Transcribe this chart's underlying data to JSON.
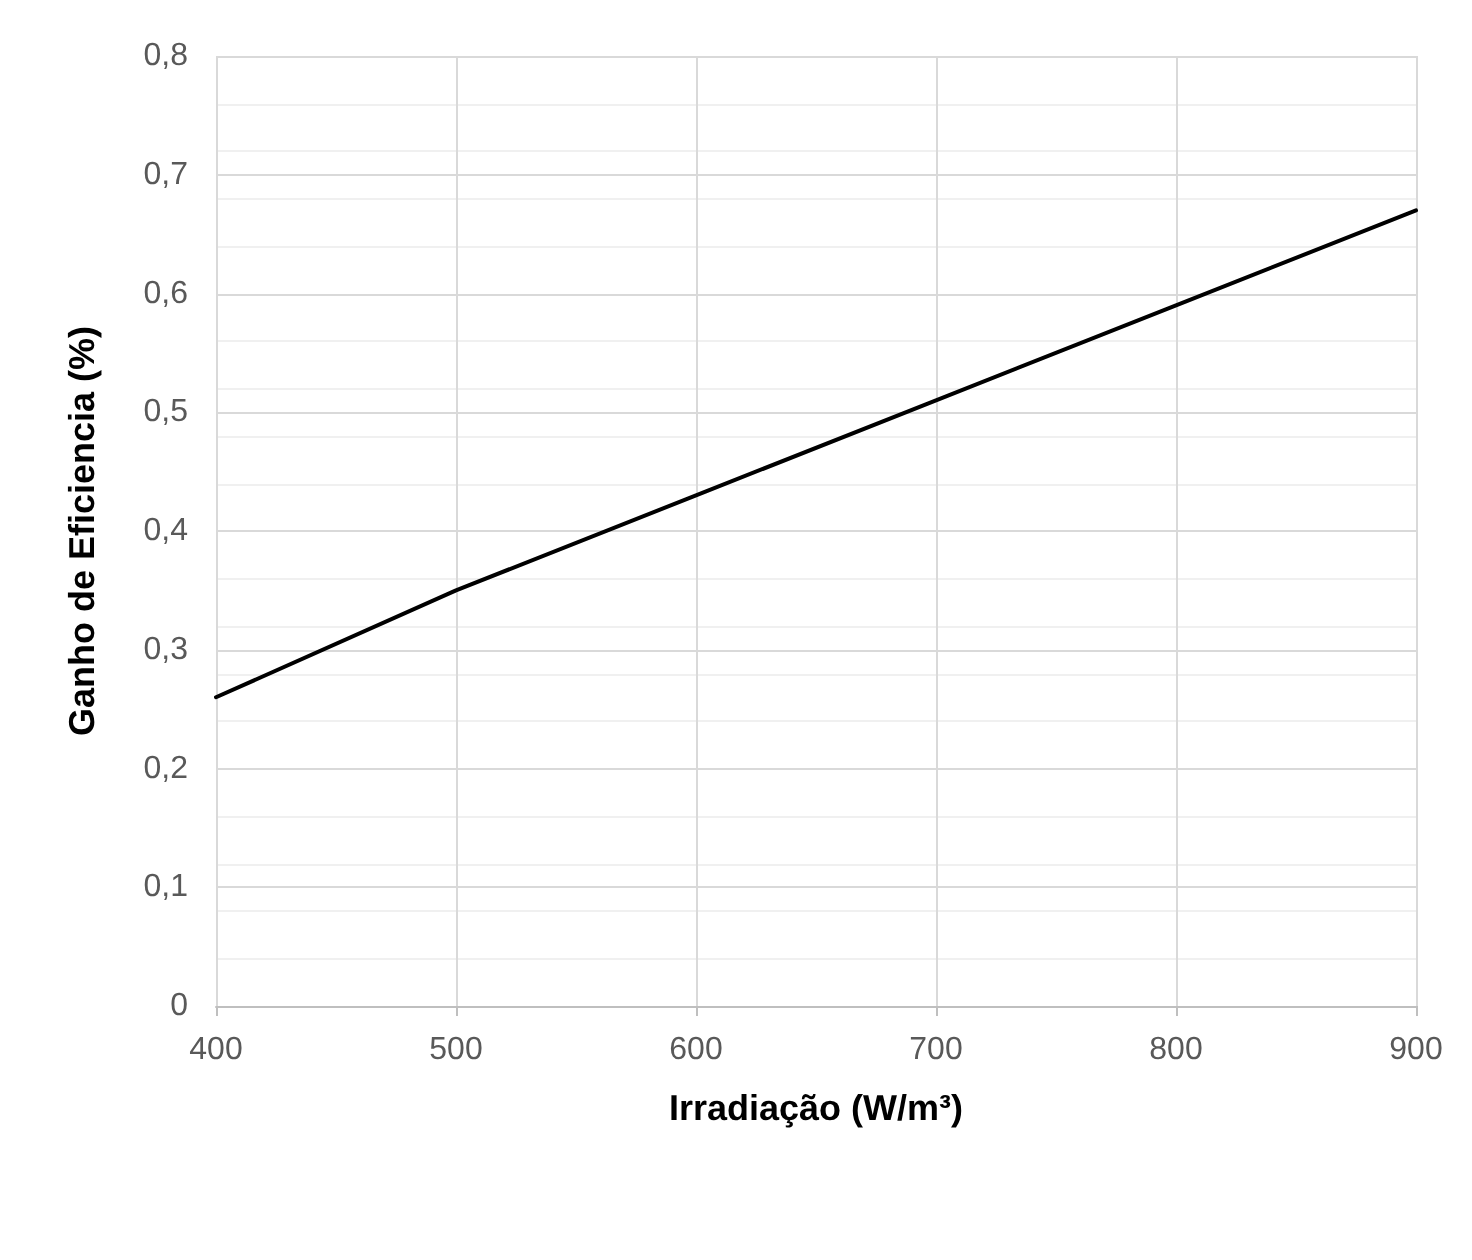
{
  "chart_data": {
    "type": "line",
    "xlabel": "Irradiação (W/m³)",
    "ylabel": "Ganho de Eficiencia (%)",
    "x": [
      400,
      500,
      600,
      700,
      800,
      900
    ],
    "series": [
      {
        "color": "#000000",
        "values": [
          0.26,
          0.35,
          0.43,
          0.51,
          0.59,
          0.67
        ]
      }
    ],
    "xlim": [
      400,
      900
    ],
    "xticks": [
      400,
      500,
      600,
      700,
      800,
      900
    ],
    "ylim": [
      0,
      0.8
    ],
    "yticks": [
      0,
      {
        "value": 0.1,
        "label": "0,1"
      },
      {
        "value": 0.2,
        "label": "0,2"
      },
      {
        "value": 0.3,
        "label": "0,3"
      },
      {
        "value": 0.4,
        "label": "0,4"
      },
      {
        "value": 0.5,
        "label": "0,5"
      },
      {
        "value": 0.6,
        "label": "0,6"
      },
      {
        "value": 0.7,
        "label": "0,7"
      },
      {
        "value": 0.8,
        "label": "0,8"
      }
    ],
    "grid": true,
    "marker": "none",
    "line_style": "solid"
  }
}
